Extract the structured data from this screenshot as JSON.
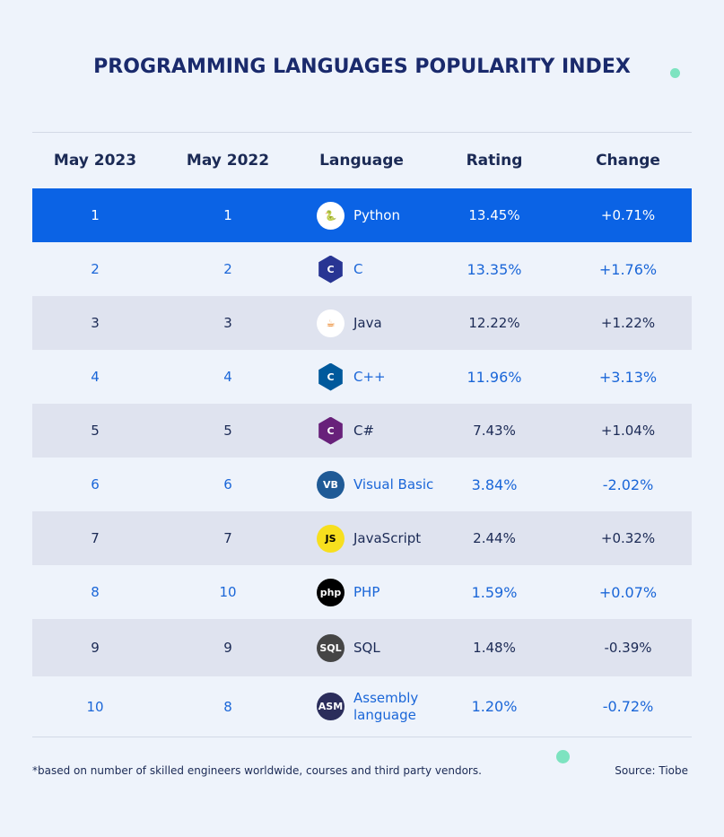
{
  "header": {
    "title": "PROGRAMMING LANGUAGES POPULARITY INDEX"
  },
  "table": {
    "headers": [
      "May 2023",
      "May 2022",
      "Language",
      "Rating",
      "Change"
    ],
    "rows": [
      {
        "cells": [
          "1",
          "1",
          "Python",
          "13.45%",
          "+0.71%"
        ]
      },
      {
        "cells": [
          "2",
          "2",
          "C",
          "13.35%",
          "+1.76%"
        ]
      },
      {
        "cells": [
          "3",
          "3",
          "Java",
          "12.22%",
          "+1.22%"
        ]
      },
      {
        "cells": [
          "4",
          "4",
          "C++",
          "11.96%",
          "+3.13%"
        ]
      },
      {
        "cells": [
          "5",
          "5",
          "C#",
          "7.43%",
          "+1.04%"
        ]
      },
      {
        "cells": [
          "6",
          "6",
          "Visual Basic",
          "3.84%",
          "-2.02%"
        ],
        "icon": "VB"
      },
      {
        "cells": [
          "7",
          "7",
          "JavaScript",
          "2.44%",
          "+0.32%"
        ],
        "icon": "JS"
      },
      {
        "cells": [
          "8",
          "10",
          "PHP",
          "1.59%",
          "+0.07%"
        ],
        "icon": "php"
      },
      {
        "cells": [
          "9",
          "9",
          "SQL",
          "1.48%",
          "-0.39%"
        ],
        "icon": "SQL"
      },
      {
        "cells": [
          "10",
          "8",
          "Assembly language",
          "1.20%",
          "-0.72%"
        ],
        "icon": "ASM"
      }
    ]
  },
  "footer": {
    "note": "*based on number of skilled engineers worldwide, courses and third party vendors.",
    "source": "Source: Tiobe"
  }
}
